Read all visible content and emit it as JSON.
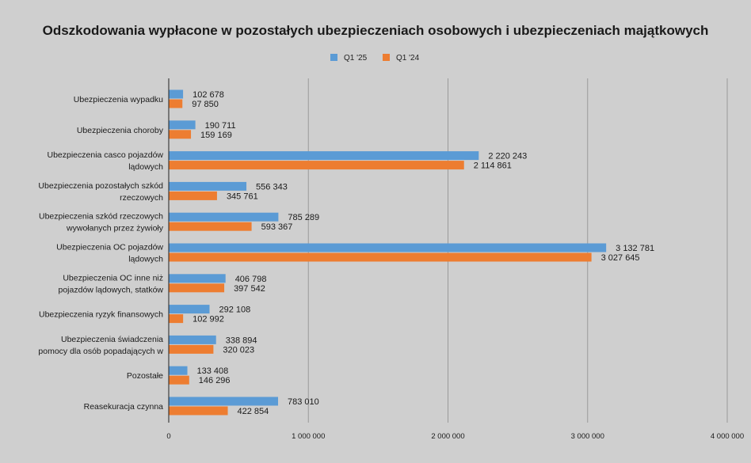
{
  "chart_data": {
    "type": "bar",
    "orientation": "horizontal",
    "title": "Odszkodowania wypłacone w pozostałych ubezpieczeniach osobowych i ubezpieczeniach majątkowych",
    "legend_position": "top",
    "grid": true,
    "xlim": [
      0,
      4000000
    ],
    "x_ticks": [
      0,
      1000000,
      2000000,
      3000000,
      4000000
    ],
    "x_tick_labels": [
      "0",
      "1 000 000",
      "2 000 000",
      "3 000 000",
      "4 000 000"
    ],
    "categories": [
      [
        "Ubezpieczenia wypadku"
      ],
      [
        "Ubezpieczenia choroby"
      ],
      [
        "Ubezpieczenia casco pojazdów",
        "lądowych"
      ],
      [
        "Ubezpieczenia pozostałych szkód",
        "rzeczowych"
      ],
      [
        "Ubezpieczenia szkód rzeczowych",
        "wywołanych przez żywioły"
      ],
      [
        "Ubezpieczenia OC pojazdów",
        "lądowych"
      ],
      [
        "Ubezpieczenia OC inne niż",
        "pojazdów lądowych, statków"
      ],
      [
        "Ubezpieczenia ryzyk finansowych"
      ],
      [
        "Ubezpieczenia świadczenia",
        "pomocy dla osób popadających w"
      ],
      [
        "Pozostałe"
      ],
      [
        "Reasekuracja czynna"
      ]
    ],
    "series": [
      {
        "name": "Q1 '25",
        "color": "#5b9bd5",
        "values": [
          102678,
          190711,
          2220243,
          556343,
          785289,
          3132781,
          406798,
          292108,
          338894,
          133408,
          783010
        ],
        "labels": [
          "102 678",
          "190 711",
          "2 220 243",
          "556 343",
          "785 289",
          "3 132 781",
          "406 798",
          "292 108",
          "338 894",
          "133 408",
          "783 010"
        ]
      },
      {
        "name": "Q1 '24",
        "color": "#ed7d31",
        "values": [
          97850,
          159169,
          2114861,
          345761,
          593367,
          3027645,
          397542,
          102992,
          320023,
          146296,
          422854
        ],
        "labels": [
          "97 850",
          "159 169",
          "2 114 861",
          "345 761",
          "593 367",
          "3 027 645",
          "397 542",
          "102 992",
          "320 023",
          "146 296",
          "422 854"
        ]
      }
    ]
  }
}
